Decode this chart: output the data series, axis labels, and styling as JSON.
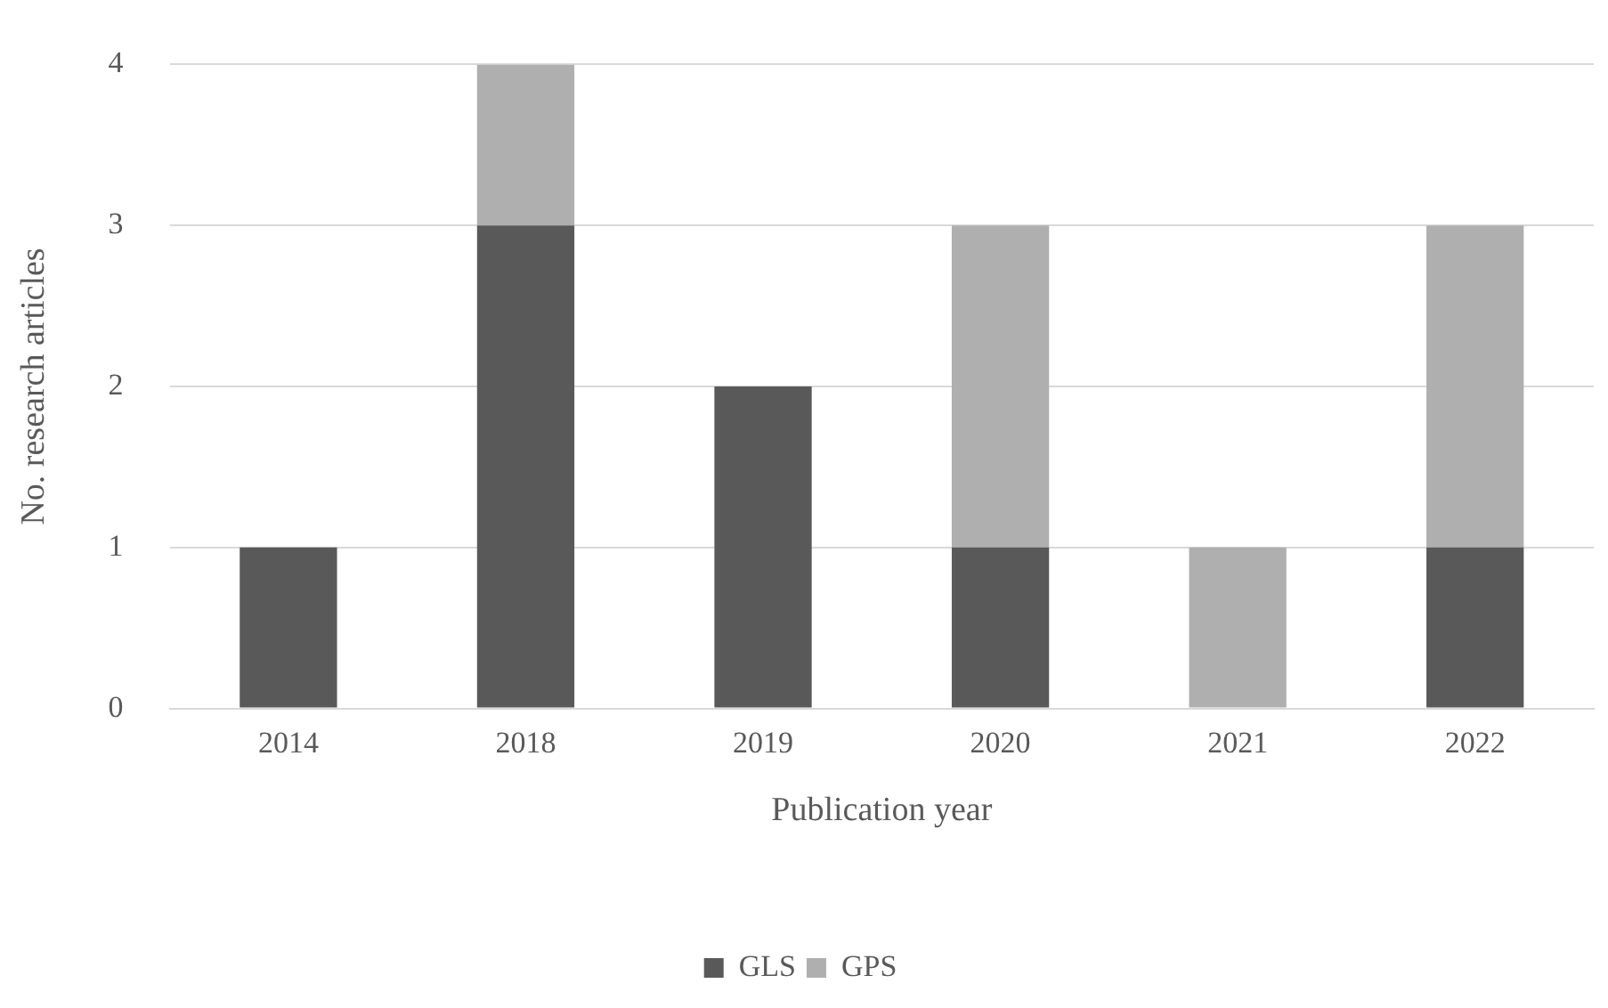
{
  "chart_data": {
    "type": "bar",
    "stacked": true,
    "xlabel": "Publication year",
    "ylabel": "No. research articles",
    "categories": [
      "2014",
      "2018",
      "2019",
      "2020",
      "2021",
      "2022"
    ],
    "series": [
      {
        "name": "GLS",
        "color": "#595959",
        "values": [
          1,
          3,
          2,
          1,
          0,
          1
        ]
      },
      {
        "name": "GPS",
        "color": "#afafaf",
        "values": [
          0,
          1,
          0,
          2,
          1,
          2
        ]
      }
    ],
    "ylim": [
      0,
      4
    ],
    "yticks": [
      0,
      1,
      2,
      3,
      4
    ],
    "grid": "y",
    "legend": "bottom"
  }
}
